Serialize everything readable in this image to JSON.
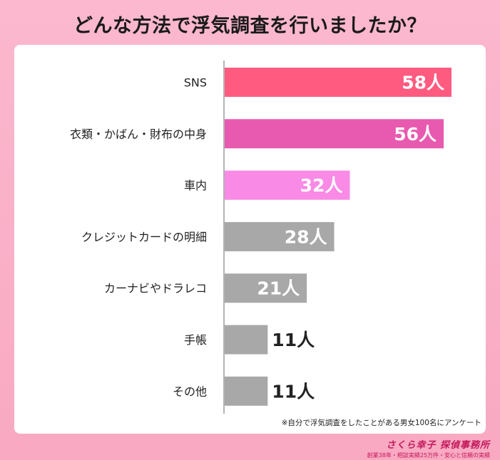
{
  "title": "どんな方法で浮気調査を行いましたか？",
  "note": "※自分で浮気調査をしたことがある男女100名にアンケート",
  "brand": {
    "name": "さくら幸子 探偵事務所",
    "tagline": "創業38年・相談実績25万件・安心と信頼の実績"
  },
  "chart_data": {
    "type": "bar",
    "orientation": "horizontal",
    "unit": "人",
    "categories": [
      "SNS",
      "衣類・かばん・財布の中身",
      "車内",
      "クレジットカードの明細",
      "カーナビやドラレコ",
      "手帳",
      "その他"
    ],
    "values": [
      58,
      56,
      32,
      28,
      21,
      11,
      11
    ],
    "colors": [
      "#ff5b80",
      "#e85aaf",
      "#f98ae6",
      "#a8a8a8",
      "#a8a8a8",
      "#a8a8a8",
      "#a8a8a8"
    ],
    "label_inside_color": "#ffffff",
    "label_outside_color": "#222222",
    "grid": false,
    "xlim": [
      0,
      58
    ]
  }
}
